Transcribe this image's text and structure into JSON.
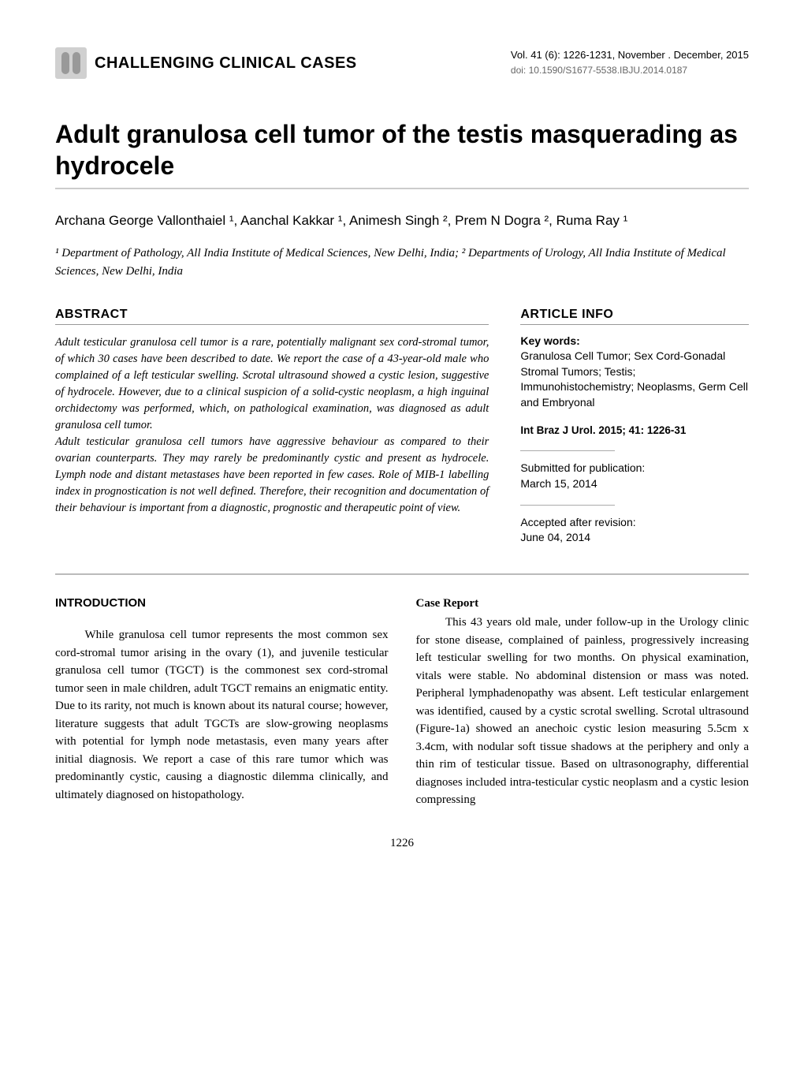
{
  "header": {
    "section_name": "CHALLENGING CLINICAL CASES",
    "volume_line": "Vol. 41 (6): 1226-1231, November . December, 2015",
    "doi": "doi: 10.1590/S1677-5538.IBJU.2014.0187"
  },
  "title": "Adult granulosa cell tumor of the testis masquerading as hydrocele",
  "authors_html": "Archana George Vallonthaiel ¹, Aanchal Kakkar ¹, Animesh Singh ², Prem N Dogra ², Ruma Ray ¹",
  "affiliations_html": "¹ Department of Pathology, All India Institute of Medical Sciences, New Delhi, India; ² Departments of Urology, All India Institute of Medical Sciences, New Delhi, India",
  "abstract": {
    "heading": "ABSTRACT",
    "p1": "Adult testicular granulosa cell tumor is a rare, potentially malignant sex cord-stromal tumor, of which 30 cases have been described to date. We report the case of a 43-year-old male who complained of a left testicular swelling. Scrotal ultrasound showed a cystic lesion, suggestive of hydrocele. However, due to a clinical suspicion of a solid-cystic neoplasm, a high inguinal orchidectomy was performed, which, on pathological examination, was diagnosed as adult granulosa cell tumor.",
    "p2": "Adult testicular granulosa cell tumors have aggressive behaviour as compared to their ovarian counterparts. They may rarely be predominantly cystic and present as hydrocele. Lymph node and distant metastases have been reported in few cases. Role of MIB-1 labelling index in prognostication is not well defined. Therefore, their recognition and documentation of their behaviour is important from a diagnostic, prognostic and therapeutic point of view."
  },
  "article_info": {
    "heading": "ARTICLE INFO",
    "keywords_label": "Key words:",
    "keywords": "Granulosa Cell Tumor; Sex Cord-Gonadal Stromal Tumors; Testis; Immunohistochemistry; Neoplasms, Germ Cell and Embryonal",
    "citation": "Int Braz J Urol. 2015; 41: 1226-31",
    "submitted_label": "Submitted for publication:",
    "submitted_date": "March 15, 2014",
    "accepted_label": "Accepted after revision:",
    "accepted_date": "June 04, 2014"
  },
  "body": {
    "intro_heading": "INTRODUCTION",
    "intro_text": "While granulosa cell tumor represents the most common sex cord-stromal tumor arising in the ovary (1), and juvenile testicular granulosa cell tumor (TGCT) is the commonest sex cord-stromal tumor seen in male children, adult TGCT remains an enigmatic entity. Due to its rarity, not much is known about its natural course; however, literature suggests that adult TGCTs are slow-growing neoplasms with potential for lymph node metastasis, even many years after initial diagnosis. We report a case of this rare tumor which was predominantly cystic, causing a diagnostic dilemma clinically, and ultimately diagnosed on histopathology.",
    "case_heading": "Case Report",
    "case_text": "This 43 years old male, under follow-up in the Urology clinic for stone disease, complained of painless, progressively increasing left testicular swelling for two months. On physical examination, vitals were stable. No abdominal distension or mass was noted. Peripheral lymphadenopathy was absent. Left testicular enlargement was identified, caused by a cystic scrotal swelling. Scrotal ultrasound (Figure-1a) showed an anechoic cystic lesion measuring 5.5cm x 3.4cm, with nodular soft tissue shadows at the periphery and only a thin rim of testicular tissue. Based on ultrasonography, differential diagnoses included intra-testicular cystic neoplasm and a cystic lesion compressing"
  },
  "page_number": "1226",
  "colors": {
    "text": "#000000",
    "background": "#ffffff",
    "underline": "#cccccc",
    "divider": "#bbbbbb",
    "badge_bg": "#d0d0d0"
  },
  "fonts": {
    "sans": "Arial, Helvetica, sans-serif",
    "serif": "Georgia, Times New Roman, serif",
    "title_size_pt": 24,
    "body_size_pt": 11,
    "abstract_size_pt": 11
  }
}
